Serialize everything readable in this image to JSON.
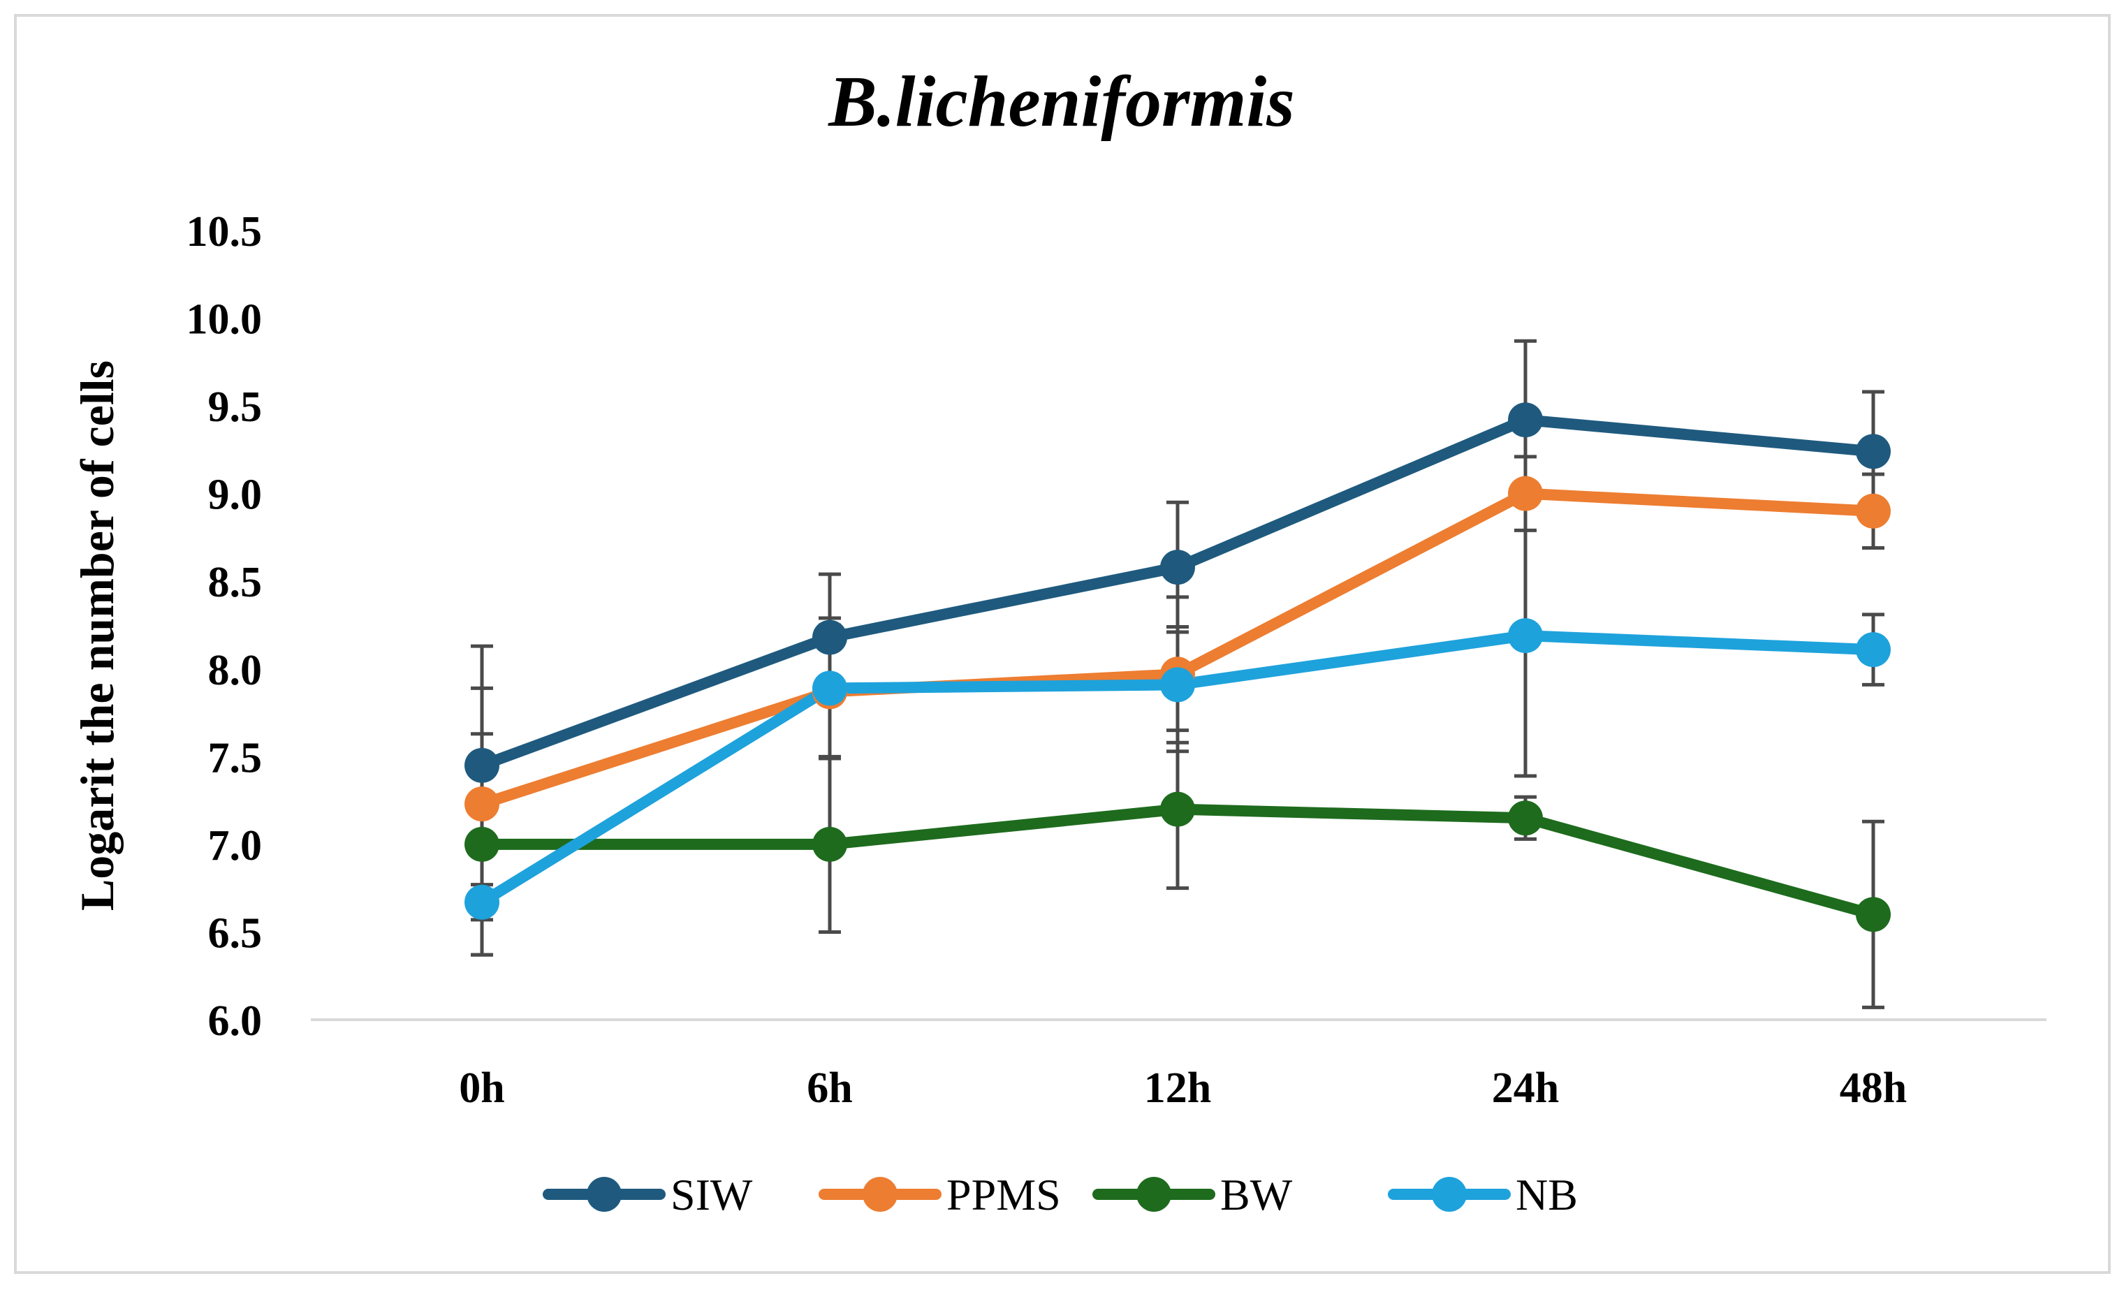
{
  "chart_data": {
    "type": "line",
    "title": "B.licheniformis",
    "xlabel": "",
    "ylabel": "Logarit the number of cells",
    "categories": [
      "0h",
      "6h",
      "12h",
      "24h",
      "48h"
    ],
    "ylim": [
      6.0,
      10.5
    ],
    "yticks": [
      "6.0",
      "6.5",
      "7.0",
      "7.5",
      "8.0",
      "8.5",
      "9.0",
      "9.5",
      "10.0",
      "10.5"
    ],
    "grid": false,
    "legend_position": "bottom",
    "series": [
      {
        "name": "SIW",
        "color": "#1f5a7e",
        "values": [
          7.45,
          8.18,
          8.58,
          9.42,
          9.24
        ],
        "errors": [
          0.68,
          0.36,
          0.37,
          0.45,
          0.34
        ]
      },
      {
        "name": "PPMS",
        "color": "#ed7d31",
        "values": [
          7.23,
          7.87,
          7.97,
          9.0,
          8.9
        ],
        "errors": [
          0.66,
          0.38,
          0.44,
          0.21,
          0.21
        ]
      },
      {
        "name": "BW",
        "color": "#1e6b1e",
        "values": [
          7.0,
          7.0,
          7.2,
          7.15,
          6.6
        ],
        "errors": [
          0.63,
          0.5,
          0.45,
          0.12,
          0.53
        ]
      },
      {
        "name": "NB",
        "color": "#1ea2dc",
        "values": [
          6.67,
          7.89,
          7.91,
          8.19,
          8.11
        ],
        "errors": [
          0.3,
          0.4,
          0.33,
          0.8,
          0.2
        ]
      }
    ]
  }
}
